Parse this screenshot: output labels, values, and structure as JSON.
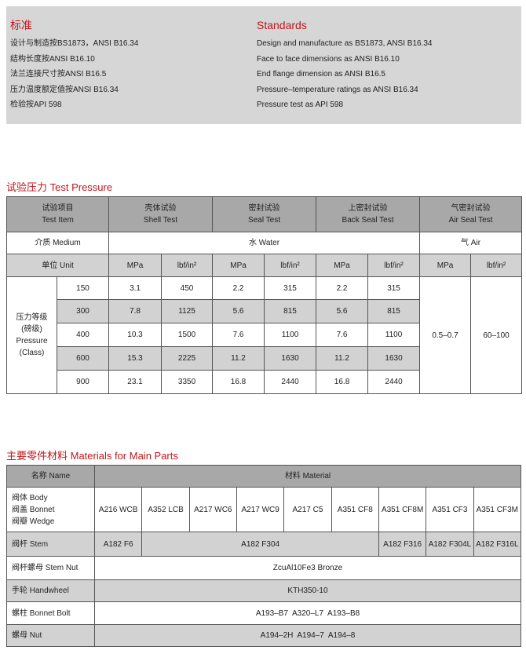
{
  "standards": {
    "cn_title": "标准",
    "en_title": "Standards",
    "cn": [
      "设计与制造按BS1873，ANSI B16.34",
      "结构长度按ANSI B16.10",
      "法兰连接尺寸按ANSI B16.5",
      "压力温度额定值按ANSI B16.34",
      "检验按API 598"
    ],
    "en": [
      "Design and manufacture as BS1873, ANSI B16.34",
      "Face to face dimensions as ANSI B16.10",
      "End flange dimension as ANSI B16.5",
      "Pressure–temperature ratings as ANSI B16.34",
      "Pressure test as API 598"
    ]
  },
  "test": {
    "title": "试验压力 Test Pressure",
    "headers": [
      [
        "试验项目",
        "Test Item"
      ],
      [
        "壳体试验",
        "Shell Test"
      ],
      [
        "密封试验",
        "Seal Test"
      ],
      [
        "上密封试验",
        "Back Seal Test"
      ],
      [
        "气密封试验",
        "Air Seal Test"
      ]
    ],
    "medium_label": "介质 Medium",
    "water": "水 Water",
    "air": "气 Air",
    "unit_label": "单位 Unit",
    "mpa": "MPa",
    "lbf": "lbf/in²",
    "class_label": [
      "压力等级",
      "(磅级)",
      "Pressure",
      "(Class)"
    ],
    "rows": [
      [
        "150",
        "3.1",
        "450",
        "2.2",
        "315",
        "2.2",
        "315"
      ],
      [
        "300",
        "7.8",
        "1125",
        "5.6",
        "815",
        "5.6",
        "815"
      ],
      [
        "400",
        "10.3",
        "1500",
        "7.6",
        "1100",
        "7.6",
        "1100"
      ],
      [
        "600",
        "15.3",
        "2225",
        "11.2",
        "1630",
        "11.2",
        "1630"
      ],
      [
        "900",
        "23.1",
        "3350",
        "16.8",
        "2440",
        "16.8",
        "2440"
      ]
    ],
    "air_mpa": "0.5–0.7",
    "air_lbf": "60–100"
  },
  "materials": {
    "title": "主要零件材料 Materials for Main Parts",
    "name_header": "名称 Name",
    "material_header": "材料 Material",
    "body_labels": [
      "阀体 Body",
      "阀盖 Bonnet",
      "阀瓣 Wedge"
    ],
    "body": [
      "A216 WCB",
      "A352 LCB",
      "A217 WC6",
      "A217 WC9",
      "A217 C5",
      "A351 CF8",
      "A351 CF8M",
      "A351 CF3",
      "A351 CF3M"
    ],
    "stem_label": "阀杆 Stem",
    "stem": [
      "A182 F6",
      "A182 F304",
      "A182 F316",
      "A182 F304L",
      "A182 F316L"
    ],
    "stem_nut_label": "阀杆螺母 Stem Nut",
    "stem_nut": "ZcuAl10Fe3 Bronze",
    "handwheel_label": "手轮 Handwheel",
    "handwheel": "KTH350-10",
    "bolt_label": "螺柱 Bonnet Bolt",
    "bolt": "A193–B7  A320–L7  A193–B8",
    "nut_label": "螺母 Nut",
    "nut": "A194–2H  A194–7  A194–8"
  }
}
